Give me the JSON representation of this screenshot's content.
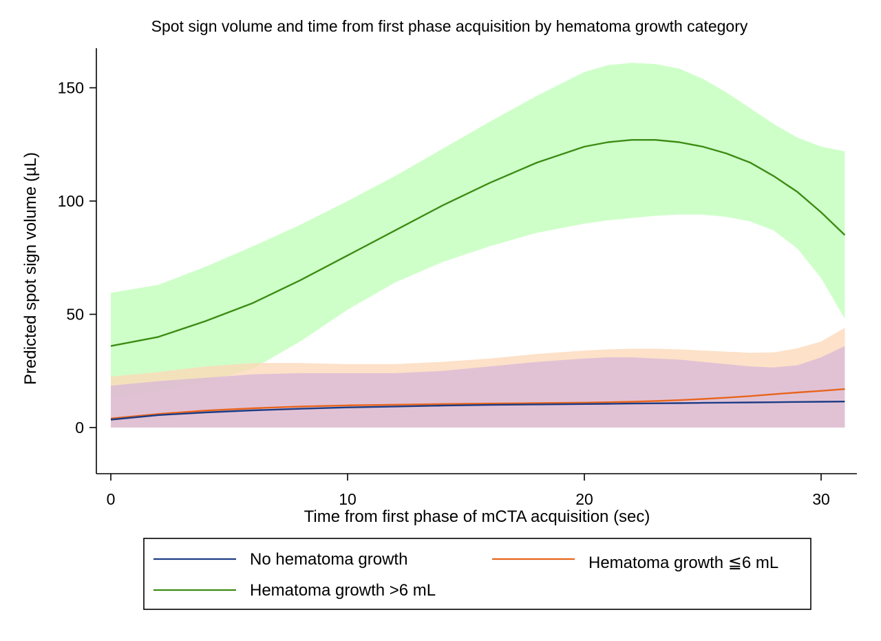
{
  "chart_data": {
    "type": "area",
    "title": "Spot sign volume and time from first phase acquisition by hematoma growth category",
    "xlabel": "Time from first phase of mCTA acquisition (sec)",
    "ylabel": "Predicted spot sign volume (µL)",
    "xlim": [
      -0.6,
      31.6
    ],
    "ylim": [
      -20,
      168
    ],
    "x_ticks": [
      0,
      10,
      20,
      30
    ],
    "y_ticks": [
      0,
      50,
      100,
      150
    ],
    "x_tick_labels": [
      "0",
      "10",
      "20",
      "30"
    ],
    "y_tick_labels": [
      "0",
      "50",
      "100",
      "150"
    ],
    "grid": false,
    "legend_position": "bottom",
    "x": [
      0,
      2,
      4,
      6,
      8,
      10,
      12,
      14,
      16,
      18,
      20,
      21,
      22,
      23,
      24,
      25,
      26,
      27,
      28,
      29,
      30,
      31
    ],
    "series": [
      {
        "name": "Hematoma growth >6 mL",
        "color": "#3a8c12",
        "band_color": "#c2ffba",
        "values": [
          36,
          40,
          47,
          55,
          65,
          76,
          87,
          98,
          108,
          117,
          124,
          126,
          127,
          127,
          126,
          124,
          121,
          117,
          111,
          104,
          95,
          85
        ],
        "ci_upper": [
          59.5,
          63,
          71,
          80,
          89.5,
          100,
          111,
          123,
          135,
          146.5,
          157,
          160,
          161,
          160.5,
          158.5,
          154,
          148,
          141,
          134,
          128,
          124,
          122
        ],
        "ci_lower": [
          13,
          16,
          20,
          26,
          38,
          52,
          64,
          73,
          80,
          86,
          90,
          91.5,
          92.5,
          93.5,
          94,
          94,
          93,
          91,
          87,
          79,
          66,
          48
        ]
      },
      {
        "name": "Hematoma growth ≦6 mL",
        "color": "#e8641c",
        "band_color": "#fdd8b9",
        "values": [
          4,
          6,
          7.5,
          8.5,
          9.3,
          9.8,
          10.1,
          10.4,
          10.6,
          10.8,
          11,
          11.2,
          11.4,
          11.7,
          12.1,
          12.6,
          13.2,
          13.9,
          14.7,
          15.5,
          16.2,
          17
        ],
        "ci_upper": [
          22.5,
          24.5,
          27,
          28.5,
          28.5,
          28,
          28,
          29,
          30.5,
          32.5,
          34,
          34.5,
          34.8,
          34.8,
          34.5,
          34,
          33.5,
          33,
          33.2,
          35,
          38,
          44
        ],
        "ci_lower": [
          0,
          0,
          0,
          0,
          0,
          0,
          0,
          0,
          0,
          0,
          0,
          0,
          0,
          0,
          0,
          0,
          0,
          0,
          0,
          0,
          0,
          0
        ]
      },
      {
        "name": "No hematoma growth",
        "color": "#1c3c84",
        "band_color": "#d9b9d9",
        "values": [
          3.5,
          5.5,
          6.7,
          7.6,
          8.3,
          8.9,
          9.3,
          9.7,
          10,
          10.2,
          10.4,
          10.5,
          10.6,
          10.7,
          10.8,
          10.9,
          11,
          11.1,
          11.2,
          11.3,
          11.4,
          11.5
        ],
        "ci_upper": [
          18.5,
          20.5,
          22,
          23.5,
          24,
          24,
          24,
          25,
          27,
          29,
          30.5,
          31,
          31,
          30.5,
          30,
          29,
          28,
          27,
          26.5,
          27.5,
          31,
          36
        ],
        "ci_lower": [
          0,
          0,
          0,
          0,
          0,
          0,
          0,
          0,
          0,
          0,
          0,
          0,
          0,
          0,
          0,
          0,
          0,
          0,
          0,
          0,
          0,
          0
        ]
      }
    ],
    "legend": [
      {
        "label": "No hematoma growth",
        "color": "#1c3c84"
      },
      {
        "label": "Hematoma growth ≦6 mL",
        "color": "#e8641c"
      },
      {
        "label": "Hematoma growth >6 mL",
        "color": "#3a8c12"
      }
    ]
  }
}
